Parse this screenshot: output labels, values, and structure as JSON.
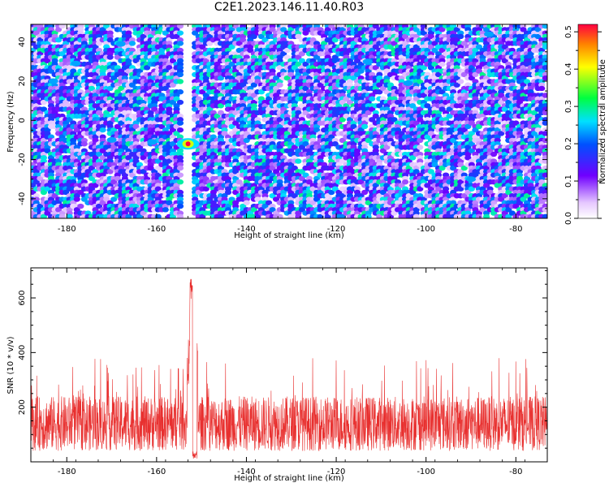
{
  "title": "C2E1.2023.146.11.40.R03",
  "chart_data": [
    {
      "type": "heatmap",
      "xlabel": "Height of straight line (km)",
      "ylabel": "Frequency (Hz)",
      "xlim": [
        -188,
        -73
      ],
      "ylim": [
        -50,
        49
      ],
      "xticks": [
        -180,
        -160,
        -140,
        -120,
        -100,
        -80
      ],
      "yticks": [
        -40,
        -20,
        0,
        20,
        40
      ],
      "colorbar": {
        "label": "Normalized spectral amplitude",
        "range": [
          0,
          0.52
        ],
        "ticks": [
          "0.0",
          "0.1",
          "0.2",
          "0.3",
          "0.4",
          "0.5"
        ],
        "tick_values": [
          0,
          0.1,
          0.2,
          0.3,
          0.4,
          0.5
        ]
      },
      "hotspot": {
        "x": -153,
        "y": -12,
        "value": 0.5
      },
      "blank_column": {
        "x_from": -154,
        "x_to": -151.5
      },
      "grid": false
    },
    {
      "type": "line",
      "xlabel": "Height of straight line (km)",
      "ylabel": "SNR (10 * v/v)",
      "xlim": [
        -188,
        -73
      ],
      "ylim": [
        0,
        710
      ],
      "xticks": [
        -180,
        -160,
        -140,
        -120,
        -100,
        -80
      ],
      "yticks": [
        200,
        400,
        600
      ],
      "baseline_range": [
        40,
        240
      ],
      "peak": {
        "x": -152,
        "y": 700
      },
      "color": "#e8302f",
      "grid": false
    }
  ]
}
